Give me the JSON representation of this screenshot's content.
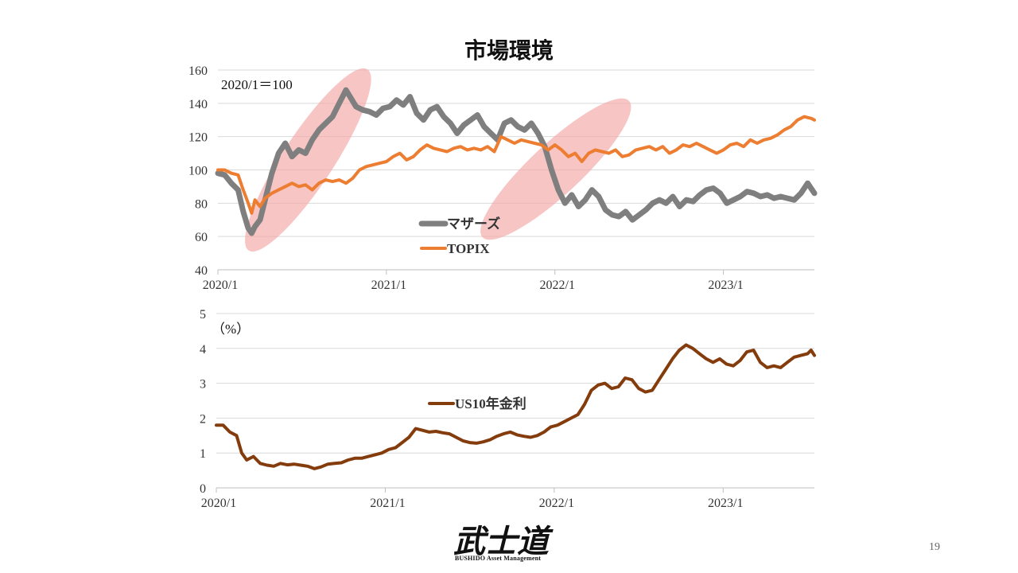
{
  "page": {
    "title": "市場環境",
    "page_number": "19",
    "footer_text": "BUSHIDO Asset Management",
    "logo_text": "武士道"
  },
  "chart_data": [
    {
      "type": "line",
      "title": "市場環境",
      "annotation": "2020/1＝100",
      "ylim": [
        40,
        160
      ],
      "yticks": [
        40,
        60,
        80,
        100,
        120,
        140,
        160
      ],
      "xlim": [
        2020.0,
        2023.54
      ],
      "xticks": [
        {
          "x": 2020.0,
          "label": "2020/1"
        },
        {
          "x": 2021.0,
          "label": "2021/1"
        },
        {
          "x": 2022.0,
          "label": "2022/1"
        },
        {
          "x": 2023.0,
          "label": "2023/1"
        }
      ],
      "grid": true,
      "legend": "center",
      "highlights": [
        {
          "x_range": [
            2020.25,
            2020.82
          ],
          "y_range": [
            62,
            150
          ],
          "color": "#f4a6a6"
        },
        {
          "x_range": [
            2021.66,
            2022.35
          ],
          "y_range": [
            68,
            133
          ],
          "color": "#f4a6a6"
        }
      ],
      "series": [
        {
          "name": "マザーズ",
          "color": "#7f7f7f",
          "x": [
            2020.0,
            2020.04,
            2020.08,
            2020.12,
            2020.15,
            2020.18,
            2020.2,
            2020.22,
            2020.25,
            2020.28,
            2020.32,
            2020.36,
            2020.4,
            2020.44,
            2020.48,
            2020.52,
            2020.56,
            2020.6,
            2020.64,
            2020.68,
            2020.72,
            2020.76,
            2020.79,
            2020.82,
            2020.86,
            2020.9,
            2020.94,
            2020.98,
            2021.02,
            2021.06,
            2021.1,
            2021.14,
            2021.18,
            2021.22,
            2021.26,
            2021.3,
            2021.34,
            2021.38,
            2021.42,
            2021.46,
            2021.5,
            2021.54,
            2021.58,
            2021.62,
            2021.66,
            2021.7,
            2021.74,
            2021.78,
            2021.82,
            2021.86,
            2021.9,
            2021.94,
            2021.98,
            2022.02,
            2022.06,
            2022.1,
            2022.14,
            2022.18,
            2022.22,
            2022.26,
            2022.3,
            2022.34,
            2022.38,
            2022.42,
            2022.46,
            2022.5,
            2022.54,
            2022.58,
            2022.62,
            2022.66,
            2022.7,
            2022.74,
            2022.78,
            2022.82,
            2022.86,
            2022.9,
            2022.94,
            2022.98,
            2023.02,
            2023.06,
            2023.1,
            2023.14,
            2023.18,
            2023.22,
            2023.26,
            2023.3,
            2023.34,
            2023.38,
            2023.42,
            2023.46,
            2023.5,
            2023.54
          ],
          "values": [
            98,
            97,
            92,
            88,
            75,
            65,
            62,
            66,
            70,
            82,
            98,
            110,
            116,
            108,
            112,
            110,
            118,
            124,
            128,
            132,
            140,
            148,
            143,
            138,
            136,
            135,
            133,
            137,
            138,
            142,
            139,
            144,
            134,
            130,
            136,
            138,
            132,
            128,
            122,
            127,
            130,
            133,
            126,
            122,
            118,
            128,
            130,
            126,
            124,
            128,
            122,
            114,
            100,
            88,
            80,
            85,
            78,
            82,
            88,
            84,
            76,
            73,
            72,
            75,
            70,
            73,
            76,
            80,
            82,
            80,
            84,
            78,
            82,
            81,
            85,
            88,
            89,
            86,
            80,
            82,
            84,
            87,
            86,
            84,
            85,
            83,
            84,
            83,
            82,
            86,
            92,
            86
          ]
        },
        {
          "name": "TOPIX",
          "color": "#ed7d31",
          "x": [
            2020.0,
            2020.04,
            2020.08,
            2020.12,
            2020.15,
            2020.18,
            2020.2,
            2020.22,
            2020.25,
            2020.28,
            2020.32,
            2020.36,
            2020.4,
            2020.44,
            2020.48,
            2020.52,
            2020.56,
            2020.6,
            2020.64,
            2020.68,
            2020.72,
            2020.76,
            2020.8,
            2020.84,
            2020.88,
            2020.92,
            2020.96,
            2021.0,
            2021.04,
            2021.08,
            2021.12,
            2021.16,
            2021.2,
            2021.24,
            2021.28,
            2021.32,
            2021.36,
            2021.4,
            2021.44,
            2021.48,
            2021.52,
            2021.56,
            2021.6,
            2021.64,
            2021.68,
            2021.72,
            2021.76,
            2021.8,
            2021.84,
            2021.88,
            2021.92,
            2021.96,
            2022.0,
            2022.04,
            2022.08,
            2022.12,
            2022.16,
            2022.2,
            2022.24,
            2022.28,
            2022.32,
            2022.36,
            2022.4,
            2022.44,
            2022.48,
            2022.52,
            2022.56,
            2022.6,
            2022.64,
            2022.68,
            2022.72,
            2022.76,
            2022.8,
            2022.84,
            2022.88,
            2022.92,
            2022.96,
            2023.0,
            2023.04,
            2023.08,
            2023.12,
            2023.16,
            2023.2,
            2023.24,
            2023.28,
            2023.32,
            2023.36,
            2023.4,
            2023.44,
            2023.48,
            2023.52,
            2023.54
          ],
          "values": [
            100,
            100,
            98,
            97,
            88,
            80,
            74,
            82,
            78,
            83,
            86,
            88,
            90,
            92,
            90,
            91,
            88,
            92,
            94,
            93,
            94,
            92,
            95,
            100,
            102,
            103,
            104,
            105,
            108,
            110,
            106,
            108,
            112,
            115,
            113,
            112,
            111,
            113,
            114,
            112,
            113,
            112,
            114,
            111,
            120,
            118,
            116,
            118,
            117,
            116,
            115,
            112,
            115,
            112,
            108,
            110,
            105,
            110,
            112,
            111,
            110,
            112,
            108,
            109,
            112,
            113,
            114,
            112,
            114,
            110,
            112,
            115,
            114,
            116,
            114,
            112,
            110,
            112,
            115,
            116,
            114,
            118,
            116,
            118,
            119,
            121,
            124,
            126,
            130,
            132,
            131,
            130
          ]
        }
      ]
    },
    {
      "type": "line",
      "annotation": "（%）",
      "ylim": [
        0,
        5
      ],
      "yticks": [
        0,
        1,
        2,
        3,
        4,
        5
      ],
      "xlim": [
        2020.0,
        2023.54
      ],
      "xticks": [
        {
          "x": 2020.0,
          "label": "2020/1"
        },
        {
          "x": 2021.0,
          "label": "2021/1"
        },
        {
          "x": 2022.0,
          "label": "2022/1"
        },
        {
          "x": 2023.0,
          "label": "2023/1"
        }
      ],
      "grid": true,
      "legend": "center",
      "series": [
        {
          "name": "US10年金利",
          "color": "#843c0c",
          "x": [
            2020.0,
            2020.04,
            2020.08,
            2020.12,
            2020.15,
            2020.18,
            2020.22,
            2020.26,
            2020.3,
            2020.34,
            2020.38,
            2020.42,
            2020.46,
            2020.5,
            2020.54,
            2020.58,
            2020.62,
            2020.66,
            2020.7,
            2020.74,
            2020.78,
            2020.82,
            2020.86,
            2020.9,
            2020.94,
            2020.98,
            2021.02,
            2021.06,
            2021.1,
            2021.14,
            2021.18,
            2021.22,
            2021.26,
            2021.3,
            2021.34,
            2021.38,
            2021.42,
            2021.46,
            2021.5,
            2021.54,
            2021.58,
            2021.62,
            2021.66,
            2021.7,
            2021.74,
            2021.78,
            2021.82,
            2021.86,
            2021.9,
            2021.94,
            2021.98,
            2022.02,
            2022.06,
            2022.1,
            2022.14,
            2022.18,
            2022.22,
            2022.26,
            2022.3,
            2022.34,
            2022.38,
            2022.42,
            2022.46,
            2022.5,
            2022.54,
            2022.58,
            2022.62,
            2022.66,
            2022.7,
            2022.74,
            2022.78,
            2022.82,
            2022.86,
            2022.9,
            2022.94,
            2022.98,
            2023.02,
            2023.06,
            2023.1,
            2023.14,
            2023.18,
            2023.22,
            2023.26,
            2023.3,
            2023.34,
            2023.38,
            2023.42,
            2023.46,
            2023.5,
            2023.52,
            2023.54
          ],
          "values": [
            1.8,
            1.8,
            1.6,
            1.5,
            1.0,
            0.8,
            0.9,
            0.7,
            0.65,
            0.62,
            0.7,
            0.66,
            0.68,
            0.65,
            0.62,
            0.55,
            0.6,
            0.68,
            0.7,
            0.72,
            0.8,
            0.85,
            0.85,
            0.9,
            0.95,
            1.0,
            1.1,
            1.15,
            1.3,
            1.45,
            1.7,
            1.65,
            1.6,
            1.62,
            1.58,
            1.55,
            1.45,
            1.35,
            1.3,
            1.28,
            1.32,
            1.38,
            1.48,
            1.55,
            1.6,
            1.52,
            1.48,
            1.45,
            1.5,
            1.6,
            1.75,
            1.8,
            1.9,
            2.0,
            2.1,
            2.4,
            2.8,
            2.95,
            3.0,
            2.85,
            2.9,
            3.15,
            3.1,
            2.85,
            2.75,
            2.8,
            3.1,
            3.4,
            3.7,
            3.95,
            4.1,
            4.0,
            3.85,
            3.7,
            3.6,
            3.7,
            3.55,
            3.5,
            3.65,
            3.9,
            3.95,
            3.6,
            3.45,
            3.5,
            3.45,
            3.6,
            3.75,
            3.8,
            3.85,
            3.95,
            3.8
          ]
        }
      ]
    }
  ]
}
